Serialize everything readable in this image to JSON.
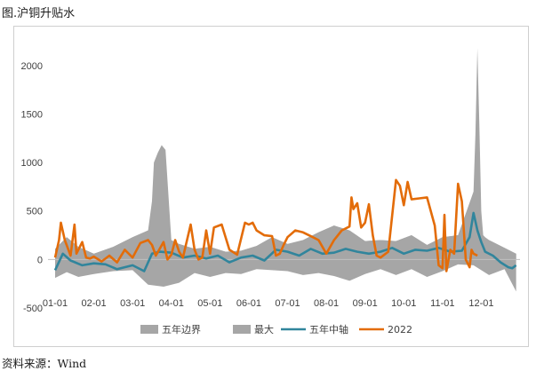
{
  "title": "图.沪铜升贴水",
  "source": "资料来源：Wind",
  "chart_data": {
    "type": "line",
    "xlabel": "",
    "ylabel": "",
    "ylim": [
      -500,
      2200
    ],
    "yticks": [
      2000,
      1500,
      1000,
      500,
      0,
      -500
    ],
    "categories": [
      "01-01",
      "02-01",
      "03-01",
      "04-01",
      "05-01",
      "06-01",
      "07-01",
      "08-01",
      "09-01",
      "10-01",
      "11-01",
      "12-01"
    ],
    "grid": false,
    "legend_position": "bottom",
    "colors": {
      "band": "#a6a6a6",
      "max": "#a6a6a6",
      "median": "#31859c",
      "y2022": "#e36c09"
    },
    "band": {
      "name": "五年边界",
      "x": [
        0,
        0.3,
        0.6,
        1.0,
        1.5,
        2.0,
        2.4,
        2.8,
        3.2,
        3.6,
        4.0,
        4.4,
        4.8,
        5.2,
        5.6,
        6.0,
        6.4,
        6.8,
        7.2,
        7.6,
        8.0,
        8.4,
        8.8,
        9.2,
        9.6,
        10.0,
        10.4,
        10.8,
        11.2,
        11.6,
        11.9
      ],
      "upper": [
        110,
        230,
        130,
        60,
        130,
        230,
        300,
        170,
        160,
        110,
        130,
        80,
        90,
        140,
        230,
        160,
        200,
        280,
        350,
        300,
        190,
        200,
        190,
        250,
        150,
        230,
        250,
        230,
        200,
        120,
        60
      ],
      "lower": [
        -190,
        -130,
        -180,
        -150,
        -120,
        -110,
        -260,
        -280,
        -240,
        -140,
        -180,
        -140,
        -150,
        -100,
        -110,
        -120,
        -160,
        -140,
        -170,
        -220,
        -150,
        -100,
        -160,
        -100,
        -180,
        -120,
        -50,
        -60,
        -160,
        -100,
        -330
      ]
    },
    "series": [
      {
        "name": "最大",
        "x": [
          0,
          0.3,
          0.6,
          1.0,
          1.5,
          2.0,
          2.4,
          2.5,
          2.55,
          2.65,
          2.75,
          2.85,
          3.0,
          3.2,
          3.6,
          4.0,
          4.4,
          4.8,
          5.2,
          5.6,
          6.0,
          6.4,
          6.8,
          7.2,
          7.6,
          8.0,
          8.4,
          8.8,
          9.2,
          9.6,
          10.0,
          10.4,
          10.8,
          10.85,
          10.9,
          10.95,
          11.0,
          11.05,
          11.1,
          11.2,
          11.6,
          11.9
        ],
        "values": [
          110,
          230,
          130,
          60,
          130,
          230,
          300,
          600,
          1000,
          1100,
          1180,
          1130,
          200,
          160,
          110,
          130,
          80,
          90,
          140,
          230,
          160,
          200,
          280,
          350,
          300,
          190,
          200,
          190,
          250,
          150,
          230,
          250,
          700,
          1300,
          2180,
          1400,
          500,
          250,
          230,
          200,
          120,
          60
        ]
      },
      {
        "name": "五年中轴",
        "x": [
          0,
          0.2,
          0.4,
          0.7,
          1.0,
          1.3,
          1.6,
          2.0,
          2.3,
          2.5,
          2.7,
          3.0,
          3.3,
          3.6,
          3.9,
          4.2,
          4.5,
          4.8,
          5.1,
          5.4,
          5.7,
          6.0,
          6.3,
          6.6,
          6.9,
          7.2,
          7.5,
          7.8,
          8.1,
          8.4,
          8.7,
          9.0,
          9.3,
          9.6,
          9.9,
          10.2,
          10.5,
          10.7,
          10.8,
          10.9,
          11.0,
          11.1,
          11.3,
          11.5,
          11.7,
          11.8,
          11.9
        ],
        "values": [
          -110,
          60,
          -10,
          -60,
          -40,
          -50,
          -100,
          -60,
          -120,
          60,
          80,
          70,
          20,
          40,
          10,
          40,
          -30,
          20,
          40,
          -10,
          100,
          80,
          40,
          110,
          60,
          70,
          110,
          80,
          60,
          80,
          120,
          60,
          100,
          90,
          120,
          80,
          90,
          230,
          480,
          300,
          180,
          80,
          40,
          -30,
          -80,
          -90,
          -60
        ]
      },
      {
        "name": "2022",
        "x": [
          0,
          0.1,
          0.15,
          0.25,
          0.4,
          0.5,
          0.55,
          0.7,
          0.8,
          0.9,
          1.0,
          1.2,
          1.4,
          1.6,
          1.8,
          1.9,
          2.0,
          2.2,
          2.4,
          2.5,
          2.6,
          2.8,
          2.9,
          3.0,
          3.1,
          3.2,
          3.3,
          3.5,
          3.6,
          3.7,
          3.8,
          3.9,
          4.0,
          4.1,
          4.3,
          4.5,
          4.7,
          4.9,
          5.0,
          5.1,
          5.2,
          5.4,
          5.6,
          5.7,
          5.8,
          5.9,
          6.0,
          6.2,
          6.4,
          6.6,
          6.8,
          7.0,
          7.2,
          7.4,
          7.6,
          7.65,
          7.7,
          7.8,
          7.9,
          8.0,
          8.1,
          8.2,
          8.3,
          8.4,
          8.6,
          8.8,
          8.9,
          9.0,
          9.1,
          9.2,
          9.4,
          9.6,
          9.8,
          9.9,
          10.0,
          10.05,
          10.1,
          10.2,
          10.3,
          10.4,
          10.5,
          10.6,
          10.7,
          10.75,
          10.8,
          10.9
        ],
        "values": [
          20,
          200,
          380,
          200,
          40,
          360,
          60,
          180,
          20,
          10,
          30,
          -20,
          40,
          -30,
          100,
          60,
          20,
          170,
          200,
          150,
          40,
          180,
          0,
          50,
          200,
          80,
          20,
          360,
          100,
          0,
          20,
          300,
          60,
          330,
          360,
          100,
          50,
          380,
          360,
          380,
          300,
          250,
          240,
          40,
          60,
          150,
          230,
          300,
          280,
          240,
          200,
          60,
          200,
          300,
          340,
          640,
          520,
          580,
          330,
          380,
          570,
          250,
          40,
          20,
          80,
          820,
          760,
          560,
          800,
          620,
          630,
          640,
          350,
          -60,
          -90,
          460,
          -120,
          100,
          60,
          780,
          600,
          0,
          -80,
          100,
          60,
          40
        ]
      }
    ]
  },
  "legend": [
    {
      "label": "五年边界",
      "kind": "area"
    },
    {
      "label": "最大",
      "kind": "area"
    },
    {
      "label": "五年中轴",
      "kind": "line"
    },
    {
      "label": "2022",
      "kind": "line"
    }
  ]
}
